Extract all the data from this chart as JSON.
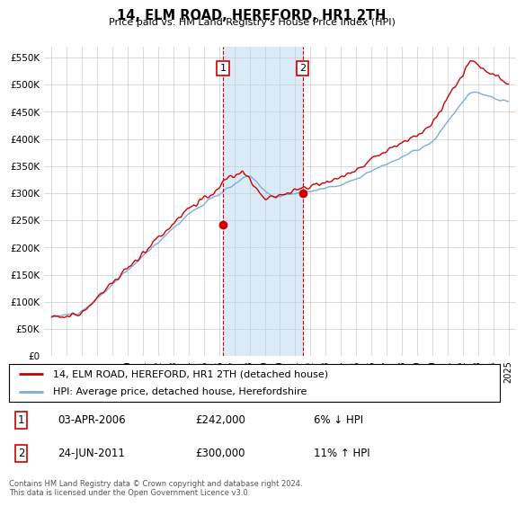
{
  "title": "14, ELM ROAD, HEREFORD, HR1 2TH",
  "subtitle": "Price paid vs. HM Land Registry's House Price Index (HPI)",
  "legend_line1": "14, ELM ROAD, HEREFORD, HR1 2TH (detached house)",
  "legend_line2": "HPI: Average price, detached house, Herefordshire",
  "footer": "Contains HM Land Registry data © Crown copyright and database right 2024.\nThis data is licensed under the Open Government Licence v3.0.",
  "sale1_label": "1",
  "sale1_date": "03-APR-2006",
  "sale1_price": "£242,000",
  "sale1_hpi": "6% ↓ HPI",
  "sale1_year": 2006.25,
  "sale1_value": 242000,
  "sale2_label": "2",
  "sale2_date": "24-JUN-2011",
  "sale2_price": "£300,000",
  "sale2_hpi": "11% ↑ HPI",
  "sale2_year": 2011.48,
  "sale2_value": 300000,
  "ylim": [
    0,
    570000
  ],
  "xlim": [
    1994.5,
    2025.5
  ],
  "yticks": [
    0,
    50000,
    100000,
    150000,
    200000,
    250000,
    300000,
    350000,
    400000,
    450000,
    500000,
    550000
  ],
  "ytick_labels": [
    "£0",
    "£50K",
    "£100K",
    "£150K",
    "£200K",
    "£250K",
    "£300K",
    "£350K",
    "£400K",
    "£450K",
    "£500K",
    "£550K"
  ],
  "xticks": [
    1995,
    1996,
    1997,
    1998,
    1999,
    2000,
    2001,
    2002,
    2003,
    2004,
    2005,
    2006,
    2007,
    2008,
    2009,
    2010,
    2011,
    2012,
    2013,
    2014,
    2015,
    2016,
    2017,
    2018,
    2019,
    2020,
    2021,
    2022,
    2023,
    2024,
    2025
  ],
  "line_color_property": "#cc0000",
  "line_color_hpi": "#7aaddc",
  "shade_color": "#daeaf7",
  "background_color": "#ffffff",
  "grid_color": "#cccccc"
}
